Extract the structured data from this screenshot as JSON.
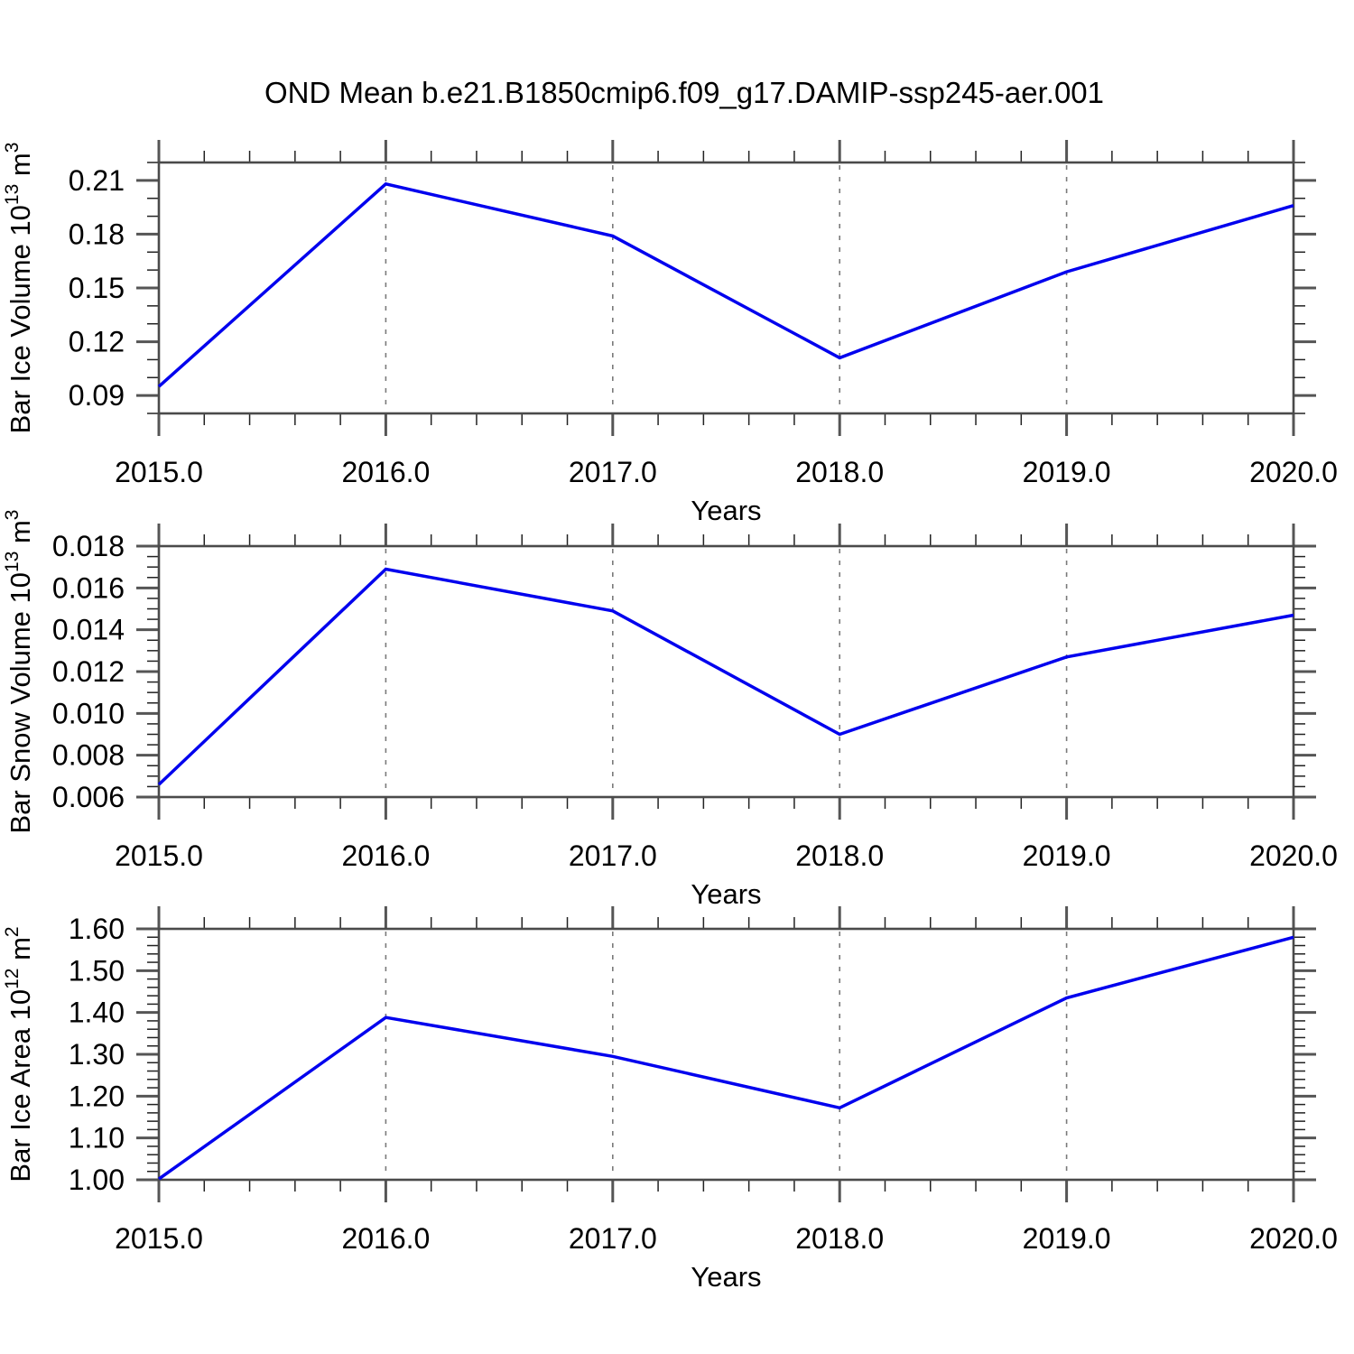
{
  "title": "OND Mean b.e21.B1850cmip6.f09_g17.DAMIP-ssp245-aer.001",
  "style": {
    "line_color": "#0000EE",
    "frame_color": "#4a4a4a",
    "major_tick_color": "#555555",
    "minor_tick_color": "#222222",
    "grid_color": "#7a7a7a",
    "text_color": "#000000",
    "background": "#FFFFFF"
  },
  "chart_data": [
    {
      "id": "ice-volume",
      "type": "line",
      "ylabel": "Bar Ice Volume 10^13 m^3",
      "ylabel_parts": [
        [
          "Bar Ice Volume 10",
          0
        ],
        [
          "13",
          1
        ],
        [
          " m",
          0
        ],
        [
          "3",
          1
        ]
      ],
      "xlabel": "Years",
      "x": [
        2015,
        2016,
        2017,
        2018,
        2019,
        2020
      ],
      "values": [
        0.095,
        0.208,
        0.179,
        0.111,
        0.159,
        0.196
      ],
      "xlim": [
        2015,
        2020
      ],
      "ylim": [
        0.08,
        0.22
      ],
      "xticks": [
        2015,
        2016,
        2017,
        2018,
        2019,
        2020
      ],
      "xtick_labels": [
        "2015.0",
        "2016.0",
        "2017.0",
        "2018.0",
        "2019.0",
        "2020.0"
      ],
      "x_minor_step": 0.2,
      "yticks": [
        0.09,
        0.12,
        0.15,
        0.18,
        0.21
      ],
      "ytick_labels": [
        "0.09",
        "0.12",
        "0.15",
        "0.18",
        "0.21"
      ],
      "y_minor_step": 0.01,
      "gridlines_x": [
        2016,
        2017,
        2018,
        2019
      ],
      "grid": "vertical-dashed",
      "legend": "none"
    },
    {
      "id": "snow-volume",
      "type": "line",
      "ylabel": "Bar Snow Volume 10^13 m^3",
      "ylabel_parts": [
        [
          "Bar Snow Volume 10",
          0
        ],
        [
          "13",
          1
        ],
        [
          " m",
          0
        ],
        [
          "3",
          1
        ]
      ],
      "xlabel": "Years",
      "x": [
        2015,
        2016,
        2017,
        2018,
        2019,
        2020
      ],
      "values": [
        0.0066,
        0.0169,
        0.0149,
        0.009,
        0.0127,
        0.0147
      ],
      "xlim": [
        2015,
        2020
      ],
      "ylim": [
        0.006,
        0.018
      ],
      "xticks": [
        2015,
        2016,
        2017,
        2018,
        2019,
        2020
      ],
      "xtick_labels": [
        "2015.0",
        "2016.0",
        "2017.0",
        "2018.0",
        "2019.0",
        "2020.0"
      ],
      "x_minor_step": 0.2,
      "yticks": [
        0.006,
        0.008,
        0.01,
        0.012,
        0.014,
        0.016,
        0.018
      ],
      "ytick_labels": [
        "0.006",
        "0.008",
        "0.010",
        "0.012",
        "0.014",
        "0.016",
        "0.018"
      ],
      "y_minor_step": 0.0005,
      "gridlines_x": [
        2016,
        2017,
        2018,
        2019
      ],
      "grid": "vertical-dashed",
      "legend": "none"
    },
    {
      "id": "ice-area",
      "type": "line",
      "ylabel": "Bar Ice Area 10^12 m^2",
      "ylabel_parts": [
        [
          "Bar Ice Area 10",
          0
        ],
        [
          "12",
          1
        ],
        [
          " m",
          0
        ],
        [
          "2",
          1
        ]
      ],
      "xlabel": "Years",
      "x": [
        2015,
        2016,
        2017,
        2018,
        2019,
        2020
      ],
      "values": [
        1.002,
        1.388,
        1.295,
        1.172,
        1.435,
        1.58
      ],
      "xlim": [
        2015,
        2020
      ],
      "ylim": [
        1.0,
        1.6
      ],
      "xticks": [
        2015,
        2016,
        2017,
        2018,
        2019,
        2020
      ],
      "xtick_labels": [
        "2015.0",
        "2016.0",
        "2017.0",
        "2018.0",
        "2019.0",
        "2020.0"
      ],
      "x_minor_step": 0.2,
      "yticks": [
        1.0,
        1.1,
        1.2,
        1.3,
        1.4,
        1.5,
        1.6
      ],
      "ytick_labels": [
        "1.00",
        "1.10",
        "1.20",
        "1.30",
        "1.40",
        "1.50",
        "1.60"
      ],
      "y_minor_step": 0.02,
      "gridlines_x": [
        2016,
        2017,
        2018,
        2019
      ],
      "grid": "vertical-dashed",
      "legend": "none"
    }
  ]
}
